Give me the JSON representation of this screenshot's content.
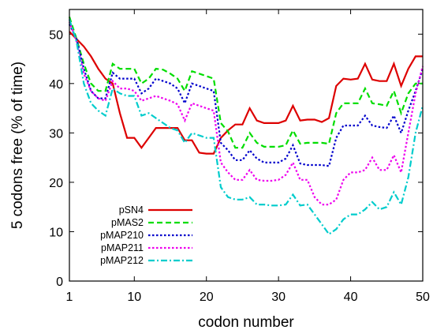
{
  "chart_data": {
    "type": "line",
    "title": "",
    "xlabel": "codon number",
    "ylabel": "5 codons free (% of time)",
    "xlim": [
      1,
      50
    ],
    "ylim": [
      0,
      55
    ],
    "xticks": [
      1,
      10,
      20,
      30,
      40,
      50
    ],
    "yticks": [
      0,
      10,
      20,
      30,
      40,
      50
    ],
    "grid": false,
    "legend_position": "bottom-left",
    "x": [
      1,
      2,
      3,
      4,
      5,
      6,
      7,
      8,
      9,
      10,
      11,
      12,
      13,
      14,
      15,
      16,
      17,
      18,
      19,
      20,
      21,
      22,
      23,
      24,
      25,
      26,
      27,
      28,
      29,
      30,
      31,
      32,
      33,
      34,
      35,
      36,
      37,
      38,
      39,
      40,
      41,
      42,
      43,
      44,
      45,
      46,
      47,
      48,
      49,
      50
    ],
    "series": [
      {
        "name": "pSN4",
        "color": "#dd0000",
        "dash": "solid",
        "values": [
          50.5,
          49,
          47.5,
          45.5,
          43,
          41,
          40,
          34,
          29,
          29,
          27,
          29,
          31,
          31,
          31,
          31,
          28.5,
          28.5,
          26,
          25.8,
          25.8,
          29,
          30.5,
          31.7,
          31.7,
          35,
          32.5,
          32,
          32,
          32,
          32.5,
          35.5,
          32.5,
          32.7,
          32.7,
          32.2,
          33,
          39.5,
          41,
          40.8,
          41,
          44,
          40.8,
          40.5,
          40.5,
          44,
          39.5,
          43,
          45.5,
          45.5
        ]
      },
      {
        "name": "pMAS2",
        "color": "#00dd00",
        "dash": "dashed",
        "values": [
          53.5,
          49,
          44,
          40,
          38.5,
          38.5,
          44,
          43,
          43,
          43,
          40,
          41,
          43,
          42.8,
          42,
          41,
          38.5,
          42.5,
          42,
          41.5,
          41,
          32,
          30.3,
          27,
          27,
          30,
          28,
          27.2,
          27.2,
          27.2,
          27.5,
          30.5,
          27.8,
          28,
          28,
          28,
          27.8,
          34,
          36,
          36,
          36,
          39,
          36,
          35.8,
          35.5,
          38.5,
          34,
          38,
          40,
          40
        ]
      },
      {
        "name": "pMAP210",
        "color": "#0000cc",
        "dash": "dotted",
        "values": [
          52,
          49,
          43,
          38.5,
          37,
          37,
          42.2,
          41,
          41,
          41,
          38,
          39,
          41,
          40.5,
          40,
          39,
          36,
          40,
          39.5,
          39,
          38.5,
          28,
          26.5,
          24.5,
          24.5,
          26.5,
          24.8,
          24,
          24,
          24,
          24.8,
          27.5,
          23.8,
          23.5,
          23.5,
          23.5,
          23.3,
          29,
          31.5,
          31.5,
          31.5,
          33.5,
          31.5,
          31.2,
          31,
          33.5,
          30,
          34.5,
          38.5,
          43
        ]
      },
      {
        "name": "pMAP211",
        "color": "#ee00ee",
        "dash": "dotted",
        "values": [
          52.5,
          48.5,
          42,
          38.5,
          37,
          36.5,
          40.5,
          39,
          39,
          38.5,
          36.5,
          37,
          37.5,
          37,
          36.5,
          35.8,
          32.5,
          36,
          35.5,
          35,
          34.5,
          24,
          22,
          20.5,
          20.5,
          22.5,
          20.5,
          20.3,
          20.3,
          20.5,
          21.5,
          24,
          20.5,
          20.5,
          17,
          15.5,
          15.5,
          16.5,
          20.5,
          22,
          22,
          22.5,
          25,
          22.5,
          22.5,
          25.5,
          22,
          30,
          38,
          43.5
        ]
      },
      {
        "name": "pMAP212",
        "color": "#00cccc",
        "dash": "dashdot",
        "values": [
          53,
          48.5,
          40,
          36,
          34.5,
          33.5,
          39,
          38,
          37.5,
          37.5,
          33.5,
          34,
          33,
          32,
          31,
          30.5,
          28,
          30,
          29.5,
          29,
          29,
          19,
          17,
          16.5,
          16.5,
          17,
          15.5,
          15.5,
          15.3,
          15.3,
          15.5,
          17.5,
          15.3,
          15.5,
          13.5,
          11.5,
          9.5,
          10.5,
          12.5,
          13.5,
          13.5,
          14.5,
          16,
          14.5,
          15,
          18,
          15.5,
          21,
          30,
          35.5
        ]
      }
    ]
  }
}
